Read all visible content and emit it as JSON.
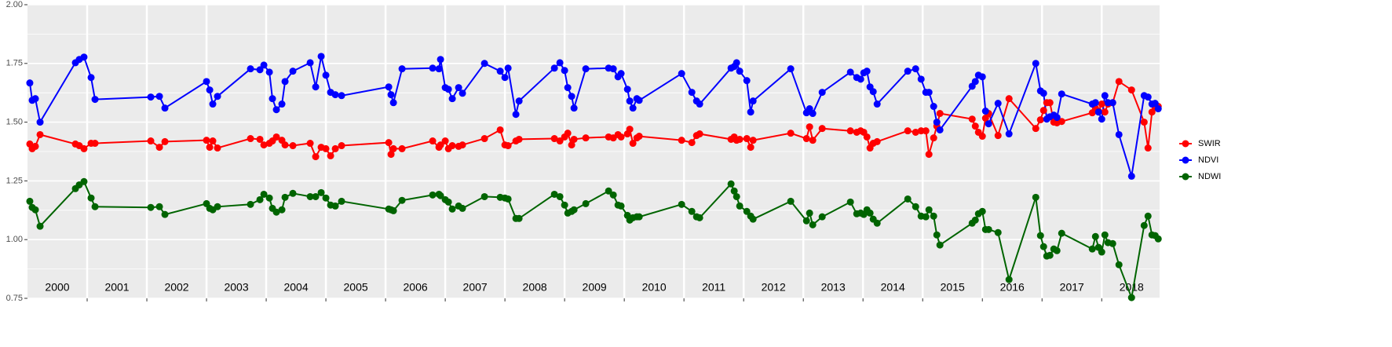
{
  "chart_data": {
    "type": "line",
    "x": [
      2000.039,
      2000.079,
      2000.132,
      2000.211,
      2000.803,
      2000.868,
      2000.947,
      2001.066,
      2001.132,
      2002.066,
      2002.211,
      2002.303,
      2003.0,
      2003.053,
      2003.105,
      2003.184,
      2003.737,
      2003.895,
      2003.961,
      2004.053,
      2004.105,
      2004.171,
      2004.263,
      2004.316,
      2004.447,
      2004.737,
      2004.829,
      2004.921,
      2005.0,
      2005.079,
      2005.158,
      2005.263,
      2006.053,
      2006.092,
      2006.132,
      2006.276,
      2006.789,
      2006.895,
      2006.921,
      2007.0,
      2007.053,
      2007.118,
      2007.224,
      2007.289,
      2007.658,
      2007.921,
      2008.0,
      2008.053,
      2008.184,
      2008.237,
      2008.829,
      2008.921,
      2009.0,
      2009.053,
      2009.118,
      2009.158,
      2009.355,
      2009.737,
      2009.816,
      2009.895,
      2009.947,
      2010.053,
      2010.092,
      2010.145,
      2010.211,
      2010.25,
      2010.961,
      2011.132,
      2011.211,
      2011.263,
      2011.789,
      2011.842,
      2011.882,
      2011.934,
      2012.053,
      2012.118,
      2012.158,
      2012.789,
      2013.053,
      2013.105,
      2013.158,
      2013.316,
      2013.789,
      2013.895,
      2013.961,
      2014.013,
      2014.066,
      2014.118,
      2014.171,
      2014.237,
      2014.75,
      2014.882,
      2014.974,
      2015.053,
      2015.105,
      2015.184,
      2015.237,
      2015.289,
      2015.829,
      2015.882,
      2015.934,
      2016.0,
      2016.053,
      2016.105,
      2016.263,
      2016.447,
      2016.895,
      2016.974,
      2017.026,
      2017.079,
      2017.132,
      2017.197,
      2017.25,
      2017.329,
      2017.842,
      2017.895,
      2017.947,
      2018.0,
      2018.053,
      2018.105,
      2018.184,
      2018.289,
      2018.5,
      2018.711,
      2018.776,
      2018.842,
      2018.895,
      2018.947
    ],
    "series": [
      {
        "name": "SWIR",
        "color": "#ff0000",
        "values": [
          1.407,
          1.387,
          1.397,
          1.447,
          1.407,
          1.4,
          1.387,
          1.41,
          1.41,
          1.42,
          1.393,
          1.417,
          1.423,
          1.393,
          1.42,
          1.39,
          1.43,
          1.427,
          1.403,
          1.41,
          1.42,
          1.437,
          1.423,
          1.403,
          1.4,
          1.41,
          1.353,
          1.393,
          1.387,
          1.357,
          1.387,
          1.4,
          1.413,
          1.363,
          1.387,
          1.387,
          1.42,
          1.393,
          1.403,
          1.42,
          1.387,
          1.4,
          1.397,
          1.403,
          1.43,
          1.467,
          1.403,
          1.4,
          1.42,
          1.427,
          1.43,
          1.42,
          1.437,
          1.453,
          1.403,
          1.427,
          1.433,
          1.437,
          1.433,
          1.447,
          1.437,
          1.45,
          1.47,
          1.41,
          1.433,
          1.44,
          1.423,
          1.413,
          1.443,
          1.45,
          1.427,
          1.437,
          1.423,
          1.427,
          1.43,
          1.393,
          1.423,
          1.453,
          1.43,
          1.48,
          1.423,
          1.473,
          1.463,
          1.457,
          1.463,
          1.457,
          1.437,
          1.39,
          1.41,
          1.417,
          1.463,
          1.457,
          1.463,
          1.463,
          1.363,
          1.433,
          1.483,
          1.537,
          1.513,
          1.483,
          1.457,
          1.44,
          1.517,
          1.537,
          1.443,
          1.6,
          1.473,
          1.51,
          1.55,
          1.583,
          1.583,
          1.5,
          1.497,
          1.503,
          1.54,
          1.56,
          1.547,
          1.577,
          1.543,
          1.577,
          1.583,
          1.673,
          1.637,
          1.5,
          1.39,
          1.543,
          1.563,
          1.567
        ]
      },
      {
        "name": "NDVI",
        "color": "#0000ff",
        "values": [
          1.667,
          1.593,
          1.6,
          1.5,
          1.753,
          1.767,
          1.777,
          1.69,
          1.597,
          1.607,
          1.61,
          1.56,
          1.673,
          1.637,
          1.577,
          1.61,
          1.727,
          1.723,
          1.743,
          1.713,
          1.6,
          1.553,
          1.577,
          1.673,
          1.717,
          1.753,
          1.65,
          1.78,
          1.7,
          1.627,
          1.617,
          1.613,
          1.65,
          1.617,
          1.583,
          1.727,
          1.73,
          1.727,
          1.767,
          1.647,
          1.64,
          1.6,
          1.647,
          1.623,
          1.75,
          1.717,
          1.69,
          1.73,
          1.533,
          1.59,
          1.73,
          1.753,
          1.72,
          1.647,
          1.61,
          1.56,
          1.727,
          1.73,
          1.727,
          1.693,
          1.707,
          1.64,
          1.59,
          1.56,
          1.6,
          1.593,
          1.707,
          1.627,
          1.59,
          1.577,
          1.73,
          1.737,
          1.753,
          1.717,
          1.677,
          1.543,
          1.59,
          1.727,
          1.54,
          1.557,
          1.537,
          1.627,
          1.713,
          1.69,
          1.683,
          1.71,
          1.717,
          1.65,
          1.63,
          1.577,
          1.717,
          1.727,
          1.683,
          1.627,
          1.627,
          1.567,
          1.5,
          1.467,
          1.653,
          1.673,
          1.7,
          1.693,
          1.547,
          1.493,
          1.58,
          1.45,
          1.75,
          1.633,
          1.623,
          1.513,
          1.523,
          1.53,
          1.52,
          1.62,
          1.577,
          1.583,
          1.543,
          1.513,
          1.613,
          1.583,
          1.583,
          1.447,
          1.27,
          1.613,
          1.607,
          1.577,
          1.58,
          1.557
        ]
      },
      {
        "name": "NDWI",
        "color": "#006400",
        "values": [
          1.163,
          1.137,
          1.127,
          1.057,
          1.217,
          1.233,
          1.247,
          1.177,
          1.14,
          1.137,
          1.14,
          1.107,
          1.153,
          1.133,
          1.127,
          1.14,
          1.15,
          1.17,
          1.193,
          1.177,
          1.133,
          1.117,
          1.127,
          1.18,
          1.197,
          1.183,
          1.183,
          1.2,
          1.177,
          1.147,
          1.143,
          1.163,
          1.13,
          1.127,
          1.123,
          1.167,
          1.19,
          1.193,
          1.187,
          1.17,
          1.16,
          1.13,
          1.143,
          1.133,
          1.183,
          1.18,
          1.177,
          1.173,
          1.09,
          1.09,
          1.193,
          1.183,
          1.147,
          1.113,
          1.12,
          1.127,
          1.153,
          1.207,
          1.19,
          1.147,
          1.143,
          1.103,
          1.083,
          1.093,
          1.097,
          1.097,
          1.15,
          1.12,
          1.097,
          1.093,
          1.237,
          1.207,
          1.183,
          1.143,
          1.12,
          1.1,
          1.087,
          1.163,
          1.08,
          1.113,
          1.063,
          1.097,
          1.16,
          1.11,
          1.113,
          1.107,
          1.127,
          1.113,
          1.087,
          1.07,
          1.173,
          1.14,
          1.1,
          1.097,
          1.127,
          1.1,
          1.02,
          0.977,
          1.07,
          1.083,
          1.11,
          1.12,
          1.043,
          1.043,
          1.03,
          0.83,
          1.18,
          1.017,
          0.97,
          0.93,
          0.933,
          0.96,
          0.953,
          1.027,
          0.96,
          1.013,
          0.967,
          0.947,
          1.02,
          0.987,
          0.983,
          0.893,
          0.753,
          1.06,
          1.1,
          1.02,
          1.017,
          1.003
        ]
      }
    ],
    "xlim": [
      2000.0,
      2018.97
    ],
    "xticks": [
      2001,
      2002,
      2003,
      2004,
      2005,
      2006,
      2007,
      2008,
      2009,
      2010,
      2011,
      2012,
      2013,
      2014,
      2015,
      2016,
      2017,
      2018
    ],
    "year_labels": [
      "2000",
      "2001",
      "2002",
      "2003",
      "2004",
      "2005",
      "2006",
      "2007",
      "2008",
      "2009",
      "2010",
      "2011",
      "2012",
      "2013",
      "2014",
      "2015",
      "2016",
      "2017",
      "2018"
    ],
    "ylim": [
      0.75,
      2.0
    ],
    "yticks": [
      0.75,
      {
        "value": 1.0,
        "label": "1.00"
      },
      1.25,
      {
        "value": 1.5,
        "label": "1.50"
      },
      1.75,
      {
        "value": 2.0,
        "label": "2.00"
      }
    ],
    "grid": true,
    "legend": "right"
  }
}
